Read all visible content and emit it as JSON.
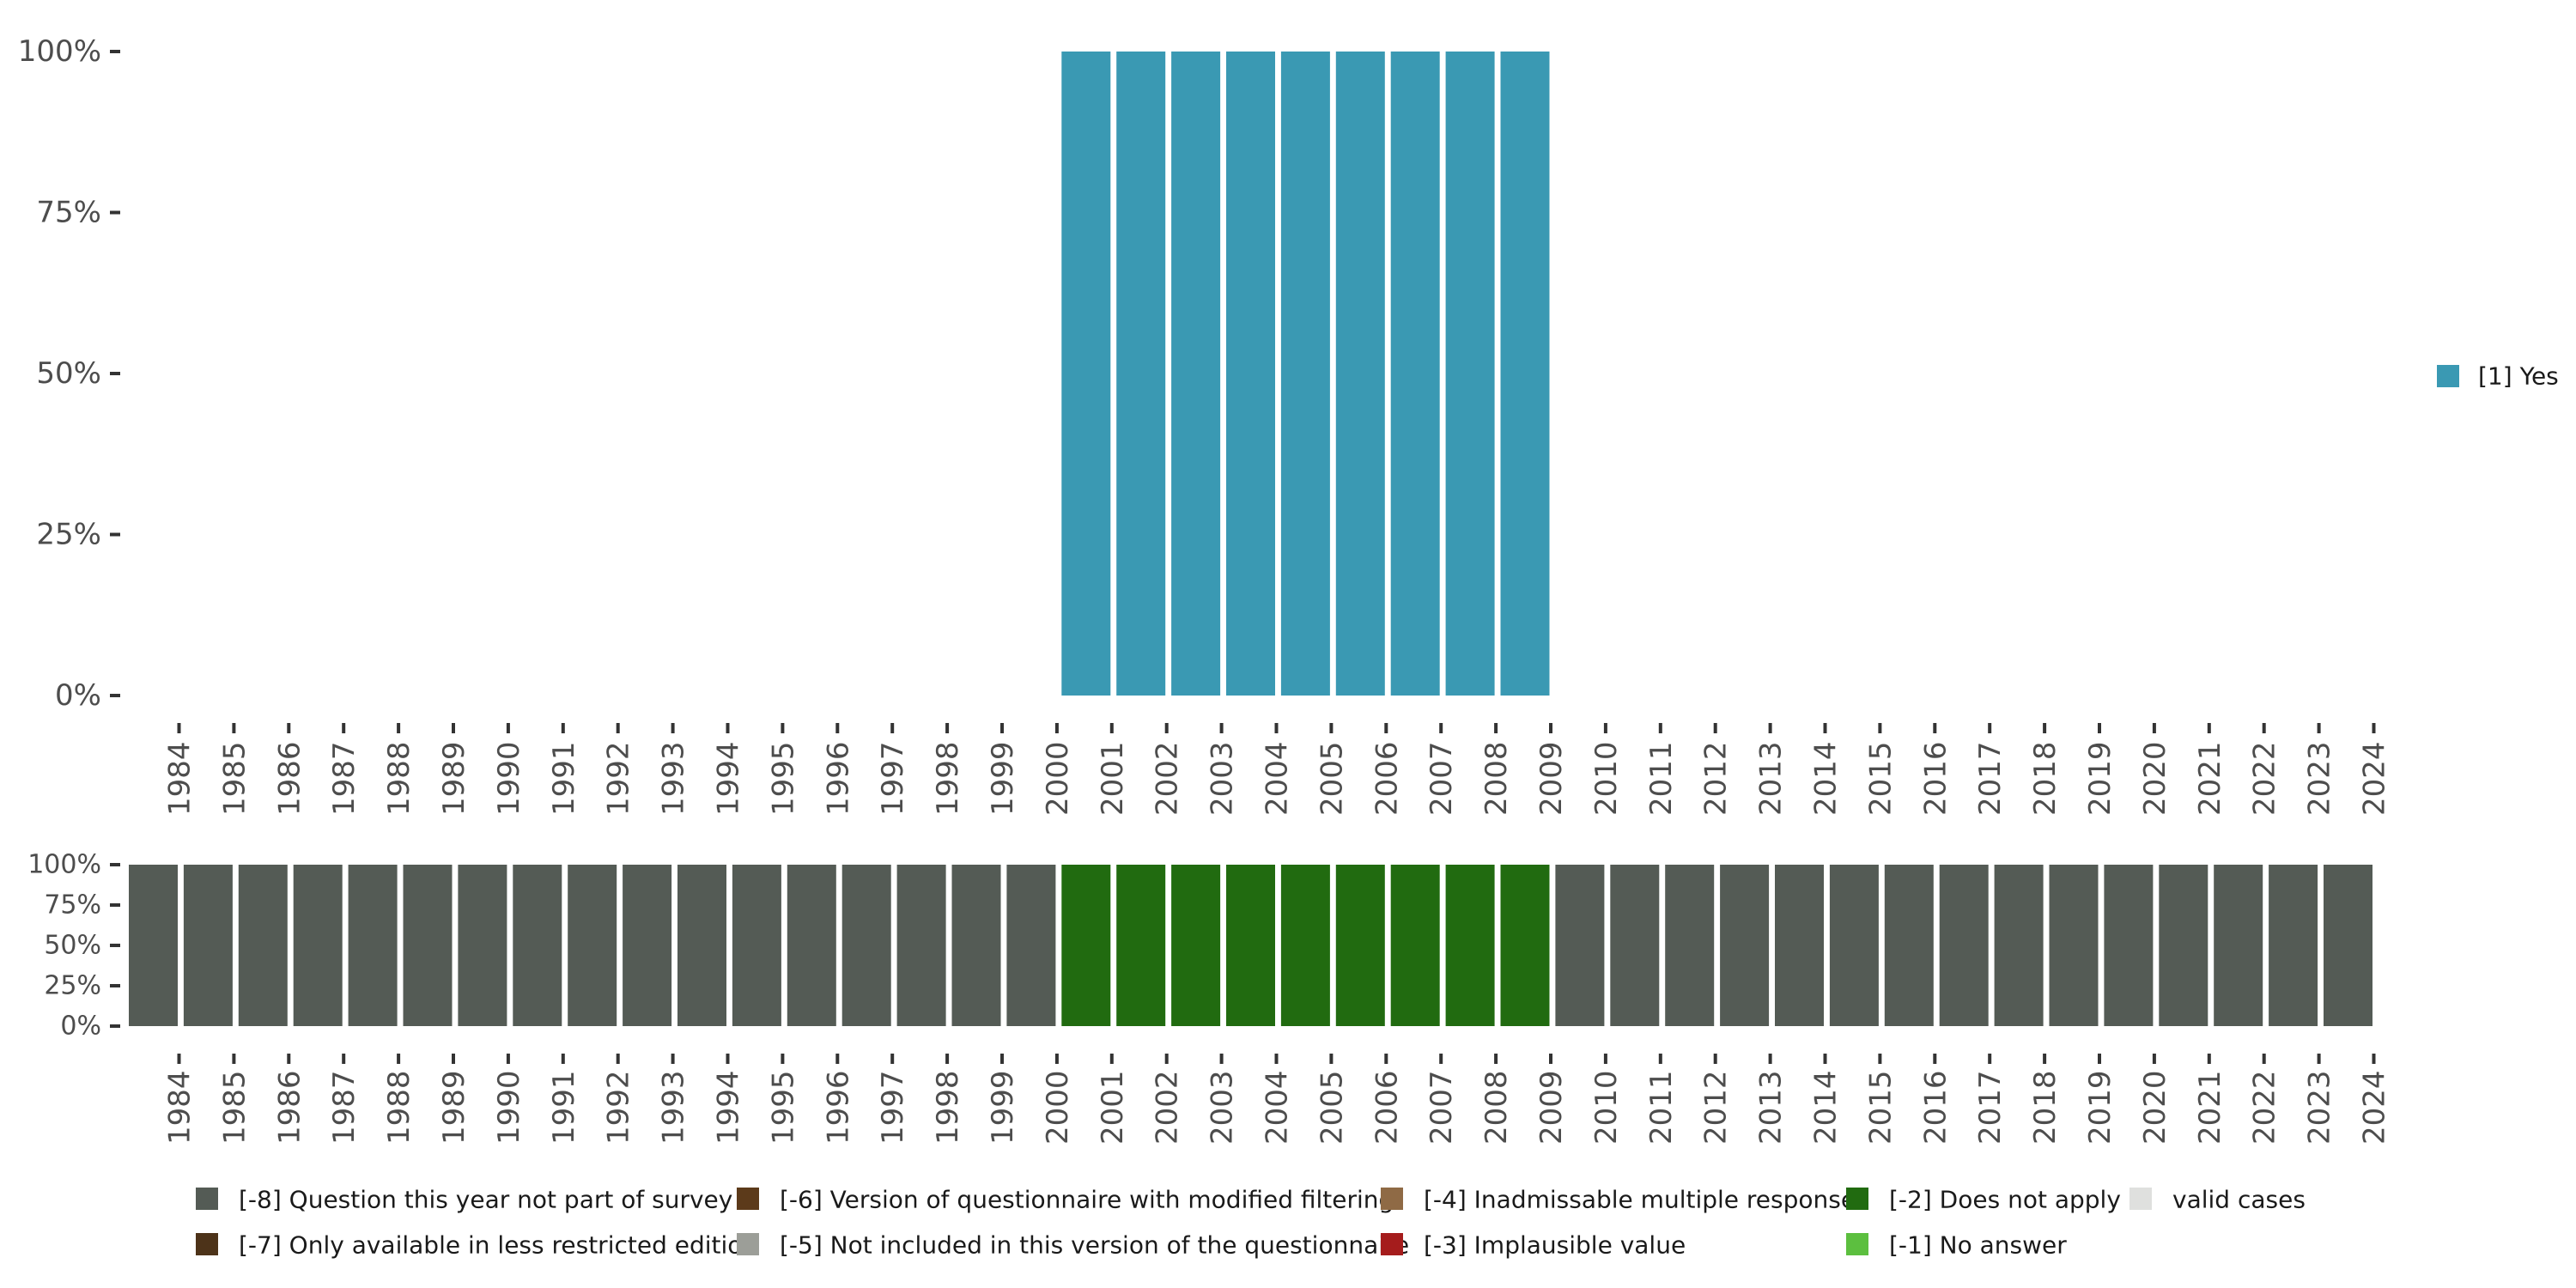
{
  "chart_data": [
    {
      "type": "bar",
      "stacked": true,
      "categories": [
        "1984",
        "1985",
        "1986",
        "1987",
        "1988",
        "1989",
        "1990",
        "1991",
        "1992",
        "1993",
        "1994",
        "1995",
        "1996",
        "1997",
        "1998",
        "1999",
        "2000",
        "2001",
        "2002",
        "2003",
        "2004",
        "2005",
        "2006",
        "2007",
        "2008",
        "2009",
        "2010",
        "2011",
        "2012",
        "2013",
        "2014",
        "2015",
        "2016",
        "2017",
        "2018",
        "2019",
        "2020",
        "2021",
        "2022",
        "2023",
        "2024"
      ],
      "series": [
        {
          "name": "[1] Yes",
          "color": "#3a99b3",
          "values": [
            0,
            0,
            0,
            0,
            0,
            0,
            0,
            0,
            0,
            0,
            0,
            0,
            0,
            0,
            0,
            0,
            0,
            100,
            100,
            100,
            100,
            100,
            100,
            100,
            100,
            100,
            0,
            0,
            0,
            0,
            0,
            0,
            0,
            0,
            0,
            0,
            0,
            0,
            0,
            0,
            0
          ]
        }
      ],
      "yticks": [
        "0%",
        "25%",
        "50%",
        "75%",
        "100%"
      ],
      "ylim": [
        0,
        100
      ],
      "legend": {
        "position": "right",
        "items": [
          {
            "label": "[1] Yes",
            "color": "#3a99b3"
          }
        ]
      }
    },
    {
      "type": "bar",
      "stacked": true,
      "categories": [
        "1984",
        "1985",
        "1986",
        "1987",
        "1988",
        "1989",
        "1990",
        "1991",
        "1992",
        "1993",
        "1994",
        "1995",
        "1996",
        "1997",
        "1998",
        "1999",
        "2000",
        "2001",
        "2002",
        "2003",
        "2004",
        "2005",
        "2006",
        "2007",
        "2008",
        "2009",
        "2010",
        "2011",
        "2012",
        "2013",
        "2014",
        "2015",
        "2016",
        "2017",
        "2018",
        "2019",
        "2020",
        "2021",
        "2022",
        "2023",
        "2024"
      ],
      "series": [
        {
          "name": "[-8] Question this year not part of survey",
          "color": "#545b55",
          "values": [
            100,
            100,
            100,
            100,
            100,
            100,
            100,
            100,
            100,
            100,
            100,
            100,
            100,
            100,
            100,
            100,
            100,
            0,
            0,
            0,
            0,
            0,
            0,
            0,
            0,
            0,
            100,
            100,
            100,
            100,
            100,
            100,
            100,
            100,
            100,
            100,
            100,
            100,
            100,
            100,
            100
          ]
        },
        {
          "name": "[-2] Does not apply",
          "color": "#216b10",
          "values": [
            0,
            0,
            0,
            0,
            0,
            0,
            0,
            0,
            0,
            0,
            0,
            0,
            0,
            0,
            0,
            0,
            0,
            100,
            100,
            100,
            100,
            100,
            100,
            100,
            100,
            100,
            0,
            0,
            0,
            0,
            0,
            0,
            0,
            0,
            0,
            0,
            0,
            0,
            0,
            0,
            0
          ]
        }
      ],
      "yticks": [
        "0%",
        "25%",
        "50%",
        "75%",
        "100%"
      ],
      "ylim": [
        0,
        100
      ],
      "legend": {
        "position": "bottom",
        "items": [
          {
            "label": "[-8] Question this year not part of survey",
            "color": "#545b55"
          },
          {
            "label": "[-7] Only available in less restricted edition",
            "color": "#4d3319"
          },
          {
            "label": "[-6] Version of questionnaire with modified filtering",
            "color": "#5c3a1a"
          },
          {
            "label": "[-5] Not included in this version of the questionnaire",
            "color": "#9c9e98"
          },
          {
            "label": "[-4] Inadmissable multiple response",
            "color": "#8f6a45"
          },
          {
            "label": "[-3] Implausible value",
            "color": "#a51c1c"
          },
          {
            "label": "[-2] Does not apply",
            "color": "#216b10"
          },
          {
            "label": "[-1] No answer",
            "color": "#5cbf3f"
          },
          {
            "label": "valid cases",
            "color": "#dfe0de"
          }
        ]
      }
    }
  ]
}
